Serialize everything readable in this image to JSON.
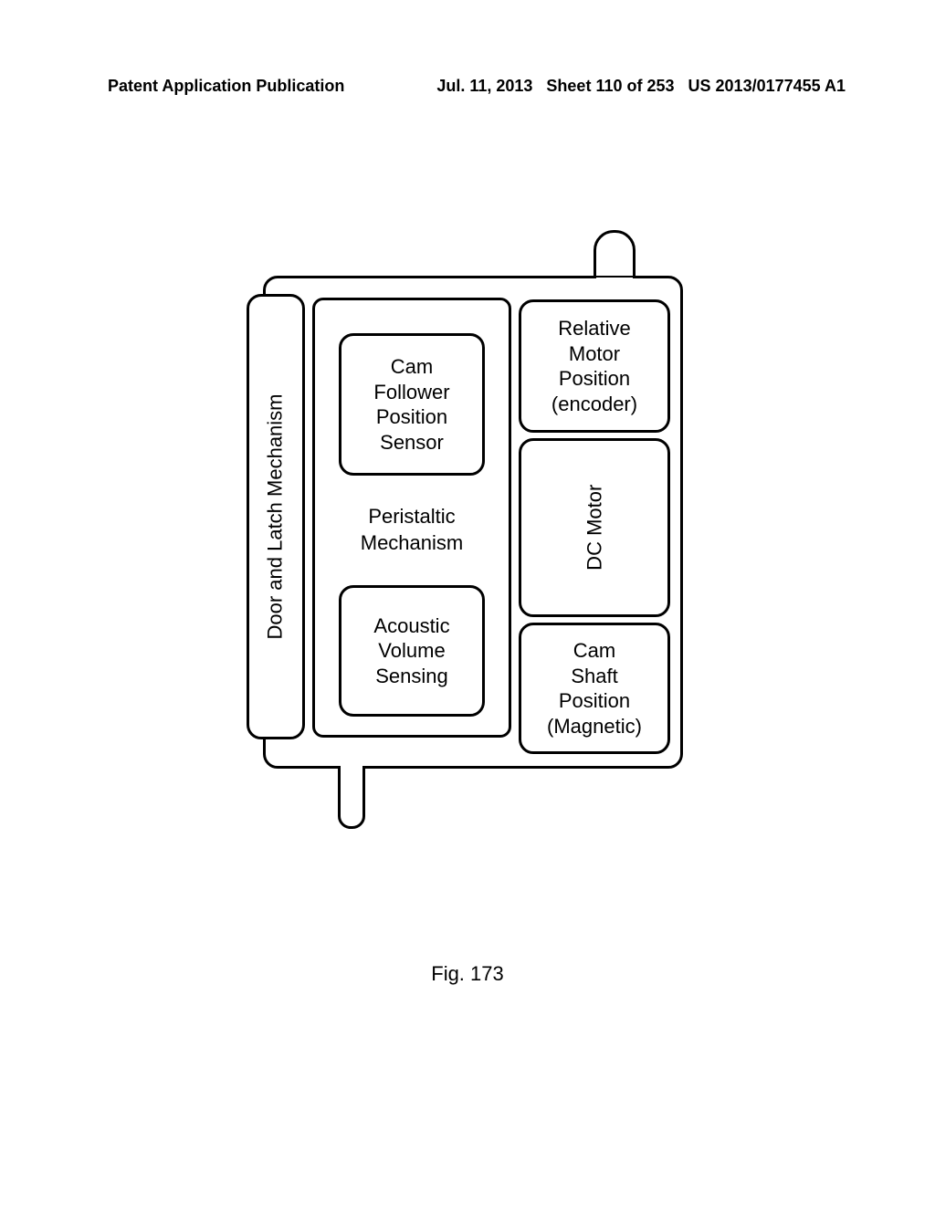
{
  "header": {
    "left": "Patent Application Publication",
    "date": "Jul. 11, 2013",
    "sheet": "Sheet 110 of 253",
    "pubno": "US 2013/0177455 A1"
  },
  "diagram": {
    "door_label": "Door and Latch Mechanism",
    "cam_follower_l1": "Cam",
    "cam_follower_l2": "Follower",
    "cam_follower_l3": "Position",
    "cam_follower_l4": "Sensor",
    "peristaltic_l1": "Peristaltic",
    "peristaltic_l2": "Mechanism",
    "acoustic_l1": "Acoustic",
    "acoustic_l2": "Volume",
    "acoustic_l3": "Sensing",
    "encoder_l1": "Relative",
    "encoder_l2": "Motor",
    "encoder_l3": "Position",
    "encoder_l4": "(encoder)",
    "dcmotor": "DC Motor",
    "camshaft_l1": "Cam",
    "camshaft_l2": "Shaft",
    "camshaft_l3": "Position",
    "camshaft_l4": "(Magnetic)"
  },
  "caption": "Fig. 173",
  "colors": {
    "stroke": "#000000",
    "bg": "#ffffff"
  }
}
